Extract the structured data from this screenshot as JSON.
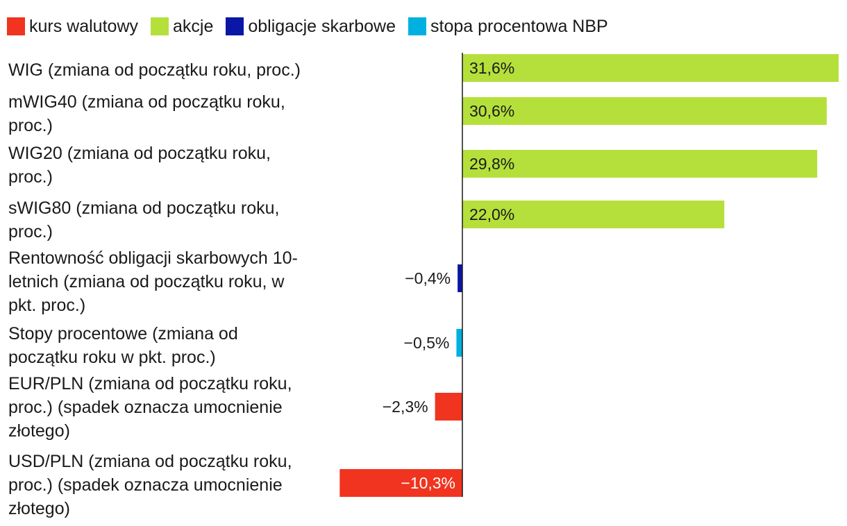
{
  "legend": [
    {
      "key": "kurs",
      "label": "kurs walutowy",
      "color": "#f0341f"
    },
    {
      "key": "akcje",
      "label": "akcje",
      "color": "#b5e03b"
    },
    {
      "key": "obligacje",
      "label": "obligacje skarbowe",
      "color": "#0a16a6"
    },
    {
      "key": "stopa",
      "label": "stopa procentowa NBP",
      "color": "#00b0e0"
    }
  ],
  "chart_data": {
    "type": "bar",
    "orientation": "horizontal",
    "title": "",
    "xlim": [
      -10.3,
      31.6
    ],
    "series": [
      {
        "name": "kurs walutowy",
        "color": "#f0341f"
      },
      {
        "name": "akcje",
        "color": "#b5e03b"
      },
      {
        "name": "obligacje skarbowe",
        "color": "#0a16a6"
      },
      {
        "name": "stopa procentowa NBP",
        "color": "#00b0e0"
      }
    ],
    "categories": [
      {
        "lines": [
          "WIG (zmiana od początku roku, proc.)"
        ],
        "value": 31.6,
        "label": "31,6%",
        "series": "akcje"
      },
      {
        "lines": [
          "mWIG40 (zmiana od początku roku,",
          "proc.)"
        ],
        "value": 30.6,
        "label": "30,6%",
        "series": "akcje"
      },
      {
        "lines": [
          "WIG20 (zmiana od początku roku,",
          "proc.)"
        ],
        "value": 29.8,
        "label": "29,8%",
        "series": "akcje"
      },
      {
        "lines": [
          "sWIG80 (zmiana od początku roku,",
          "proc.)"
        ],
        "value": 22.0,
        "label": "22,0%",
        "series": "akcje"
      },
      {
        "lines": [
          "Rentowność obligacji skarbowych 10-",
          "letnich (zmiana od początku roku, w",
          "pkt. proc.)"
        ],
        "value": -0.4,
        "label": "−0,4%",
        "series": "obligacje skarbowe"
      },
      {
        "lines": [
          "Stopy procentowe (zmiana od",
          "początku roku w pkt. proc.)"
        ],
        "value": -0.5,
        "label": "−0,5%",
        "series": "stopa procentowa NBP"
      },
      {
        "lines": [
          "EUR/PLN (zmiana od początku roku,",
          "proc.) (spadek oznacza umocnienie",
          "złotego)"
        ],
        "value": -2.3,
        "label": "−2,3%",
        "series": "kurs walutowy"
      },
      {
        "lines": [
          "USD/PLN (zmiana od początku roku,",
          "proc.) (spadek oznacza umocnienie",
          "złotego)"
        ],
        "value": -10.3,
        "label": "−10,3%",
        "series": "kurs walutowy"
      }
    ]
  }
}
